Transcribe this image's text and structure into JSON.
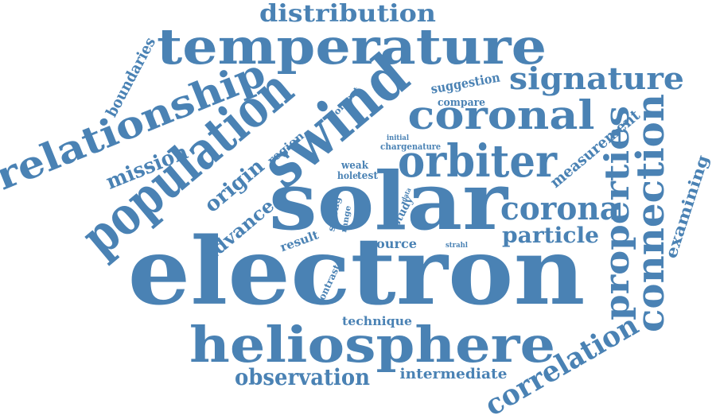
{
  "color": "#4a82b4",
  "words": {
    "electron": "electron",
    "solar": "solar",
    "temperature": "temperature",
    "heliosphere": "heliosphere",
    "population": "population",
    "swind": "swind",
    "orbiter": "orbiter",
    "coronal": "coronal",
    "relationship": "relationship",
    "connection": "connection",
    "properties": "properties",
    "corona": "corona",
    "signature": "signature",
    "correlation": "correlation",
    "distribution": "distribution",
    "observation": "observation",
    "particle": "particle",
    "mission": "mission",
    "origin": "origin",
    "measurement": "measurement",
    "examining": "examining",
    "intermediate": "intermediate",
    "advance": "advance",
    "boundaries": "boundaries",
    "suggestion": "suggestion",
    "technique": "technique",
    "source": "source",
    "result": "result",
    "region": "region",
    "contrast": "contrast",
    "compare": "compare",
    "context": "context",
    "study": "study",
    "weak": "weak",
    "hole": "hole",
    "test": "test",
    "strong": "strong",
    "range": "range",
    "charge": "charge",
    "nature": "nature",
    "initial": "initial",
    "route": "route",
    "data": "data",
    "strahl": "strahl"
  }
}
